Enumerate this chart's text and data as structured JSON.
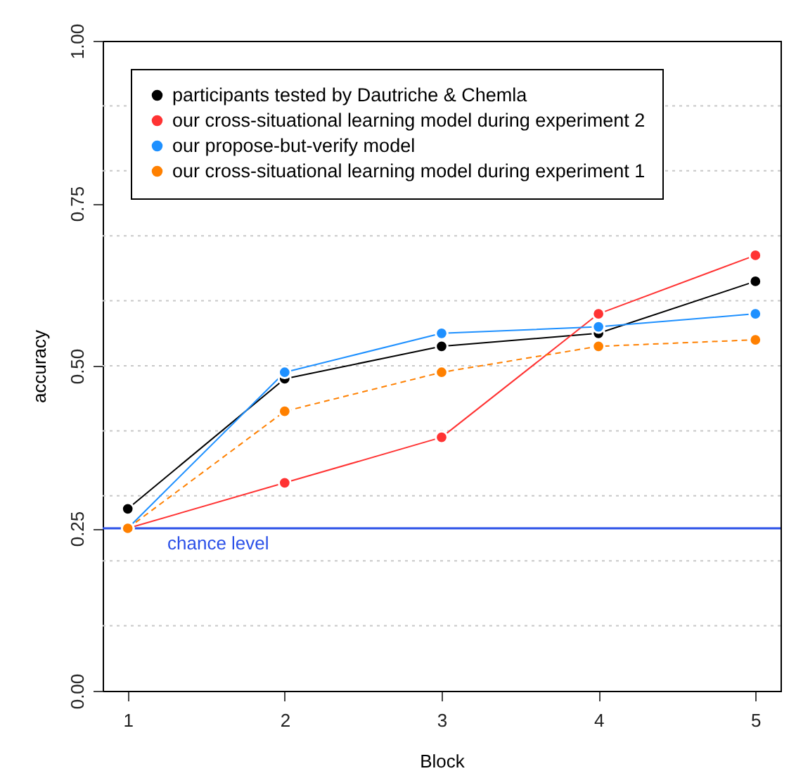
{
  "chart_data": {
    "type": "line",
    "xlabel": "Block",
    "ylabel": "accuracy",
    "x": [
      1,
      2,
      3,
      4,
      5
    ],
    "series": [
      {
        "name": "participants tested by Dautriche & Chemla",
        "color": "#000000",
        "values": [
          0.28,
          0.48,
          0.53,
          0.55,
          0.63
        ]
      },
      {
        "name": "our cross-situational learning model during experiment 2",
        "color": "#ff3333",
        "values": [
          0.25,
          0.32,
          0.39,
          0.58,
          0.67
        ]
      },
      {
        "name": "our propose-but-verify model",
        "color": "#1e90ff",
        "values": [
          0.25,
          0.49,
          0.55,
          0.56,
          0.58
        ]
      },
      {
        "name": "our cross-situational learning model during experiment 1",
        "color": "#ff8000",
        "values": [
          0.25,
          0.43,
          0.49,
          0.53,
          0.54
        ],
        "line_style": "dashed"
      }
    ],
    "xlim": [
      0.84,
      5.16
    ],
    "xticks": [
      {
        "value": 1,
        "label": "1"
      },
      {
        "value": 2,
        "label": "2"
      },
      {
        "value": 3,
        "label": "3"
      },
      {
        "value": 4,
        "label": "4"
      },
      {
        "value": 5,
        "label": "5"
      }
    ],
    "ylim": [
      0,
      1
    ],
    "yticks": [
      {
        "value": 0,
        "label": "0.00"
      },
      {
        "value": 0.1,
        "label": null
      },
      {
        "value": 0.2,
        "label": null
      },
      {
        "value": 0.25,
        "label": "0.25"
      },
      {
        "value": 0.3,
        "label": null
      },
      {
        "value": 0.4,
        "label": null
      },
      {
        "value": 0.5,
        "label": "0.50"
      },
      {
        "value": 0.6,
        "label": null
      },
      {
        "value": 0.7,
        "label": null
      },
      {
        "value": 0.75,
        "label": "0.75"
      },
      {
        "value": 0.8,
        "label": null
      },
      {
        "value": 0.9,
        "label": null
      },
      {
        "value": 1,
        "label": "1.00"
      }
    ],
    "grid": "y",
    "marker": "circle",
    "legend": "top left",
    "ref_lines": [
      {
        "axis": "y",
        "value": 0.25,
        "label": "chance level",
        "color": "#2b50e8"
      }
    ]
  }
}
